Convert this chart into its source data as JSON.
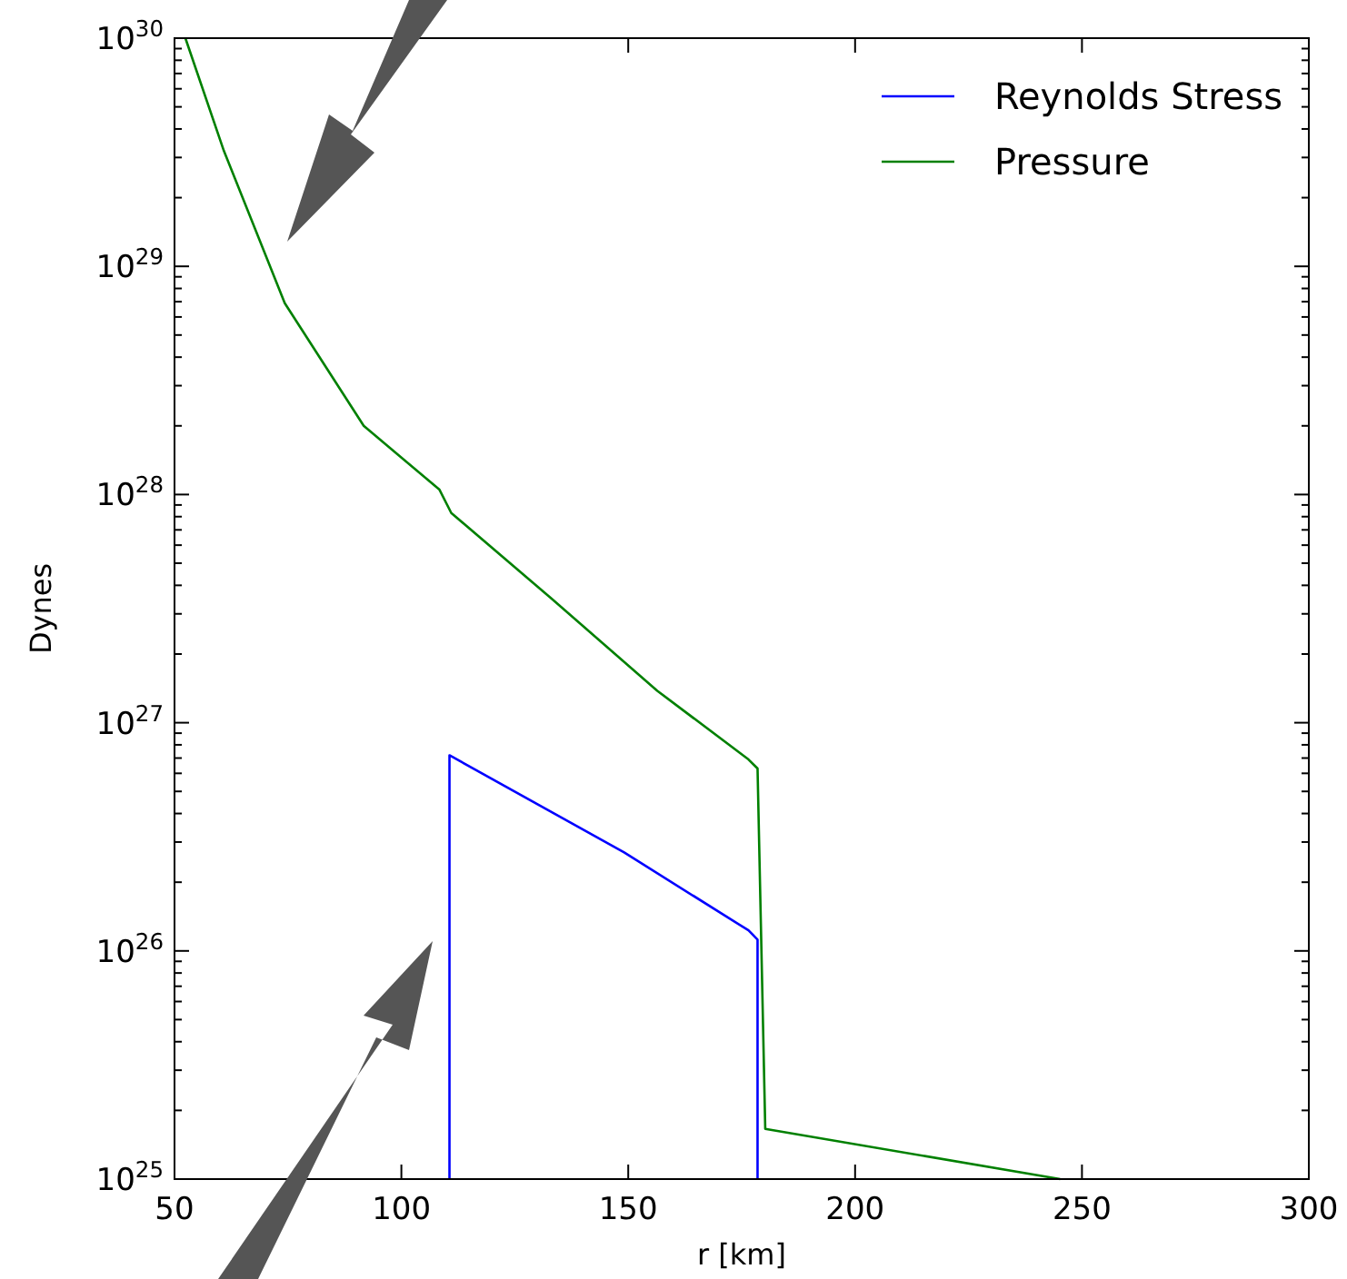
{
  "chart_data": {
    "type": "line",
    "xlabel": "r [km]",
    "ylabel": "Dynes",
    "log": "y",
    "legend": "top right",
    "grid": false,
    "xlim": [
      50,
      300
    ],
    "xticks": [
      50,
      100,
      150,
      200,
      250,
      300
    ],
    "ylim": [
      1e+25,
      1e+30
    ],
    "yticks": [
      {
        "value": 1e+25,
        "label": "10$^{25}$"
      },
      {
        "value": 1e+26,
        "label": "10$^{26}$"
      },
      {
        "value": 1e+27,
        "label": "10$^{27}$"
      },
      {
        "value": 1e+28,
        "label": "10$^{28}$"
      },
      {
        "value": 1e+29,
        "label": "10$^{29}$"
      },
      {
        "value": 1e+30,
        "label": "10$^{30}$"
      }
    ],
    "series": [
      {
        "name": "Reynolds Stress",
        "color": "#0000ff",
        "x": [
          110.6,
          110.6,
          149.1,
          176.5,
          178.5,
          178.5
        ],
        "values": [
          1e+25,
          7.2e+26,
          2.7e+26,
          1.23e+26,
          1.12e+26,
          1e+25
        ]
      },
      {
        "name": "Pressure",
        "color": "#008000",
        "x": [
          52.4,
          60.9,
          74.3,
          91.7,
          108.4,
          111.0,
          133.1,
          156.4,
          176.5,
          178.5,
          180.2,
          245.2
        ],
        "values": [
          1e+30,
          3.2e+29,
          6.9e+28,
          2e+28,
          1.05e+28,
          8.3e+27,
          3.5e+27,
          1.38e+27,
          6.9e+26,
          6.3e+26,
          1.66e+25,
          1e+25
        ]
      }
    ]
  }
}
